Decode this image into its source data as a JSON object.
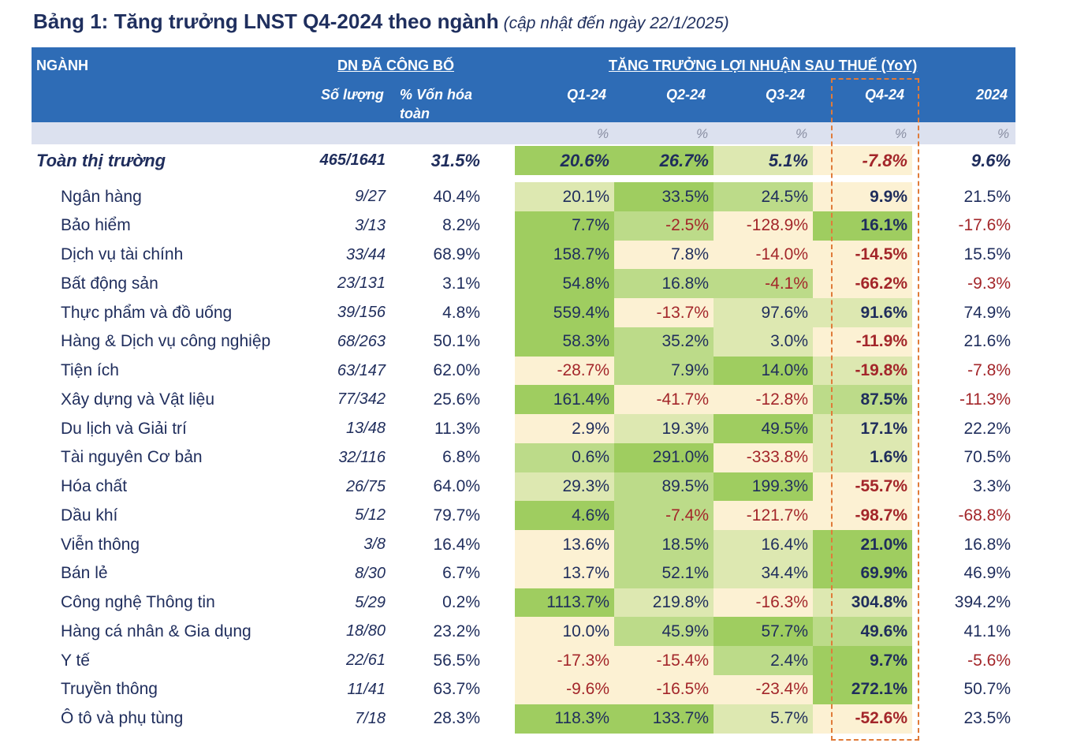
{
  "title": "Bảng 1: Tăng trưởng LNST Q4-2024 theo ngành",
  "subtitle": "(cập nhật đến ngày 22/1/2025)",
  "header": {
    "nganh": "NGÀNH",
    "dn_group": "DN ĐÃ CÔNG BỐ",
    "growth_group": "TĂNG TRƯỞNG LỢI NHUẬN SAU THUẾ (YoY)",
    "so_luong": "Số lượng",
    "von_hoa": "% Vốn hóa",
    "von_hoa2": "toàn",
    "q1": "Q1-24",
    "q2": "Q2-24",
    "q3": "Q3-24",
    "q4": "Q4-24",
    "y": "2024",
    "unit": "%"
  },
  "colors": {
    "heat_0": "#FCF1D3",
    "heat_1": "#DDE8B1",
    "heat_2": "#BCDB89",
    "heat_3": "#9FCD60",
    "positive": "#1F2D5C",
    "negative": "#A3262A",
    "highlight": "#E07B39",
    "header": "#2E6CB6"
  },
  "total": {
    "name": "Toàn thị trường",
    "count": "465/1641",
    "cap": "31.5%",
    "q": [
      "20.6%",
      "26.7%",
      "5.1%",
      "-7.8%"
    ],
    "heat": [
      3,
      3,
      1,
      0
    ],
    "y": "9.6%"
  },
  "rows": [
    {
      "name": "Ngân hàng",
      "count": "9/27",
      "cap": "40.4%",
      "q": [
        "20.1%",
        "33.5%",
        "24.5%",
        "9.9%"
      ],
      "heat": [
        1,
        3,
        2,
        0
      ],
      "y": "21.5%"
    },
    {
      "name": "Bảo hiểm",
      "count": "3/13",
      "cap": "8.2%",
      "q": [
        "7.7%",
        "-2.5%",
        "-128.9%",
        "16.1%"
      ],
      "heat": [
        3,
        2,
        0,
        3
      ],
      "y": "-17.6%"
    },
    {
      "name": "Dịch vụ tài chính",
      "count": "33/44",
      "cap": "68.9%",
      "q": [
        "158.7%",
        "7.8%",
        "-14.0%",
        "-14.5%"
      ],
      "heat": [
        3,
        0,
        0,
        0
      ],
      "y": "15.5%"
    },
    {
      "name": "Bất động sản",
      "count": "23/131",
      "cap": "3.1%",
      "q": [
        "54.8%",
        "16.8%",
        "-4.1%",
        "-66.2%"
      ],
      "heat": [
        3,
        2,
        2,
        0
      ],
      "y": "-9.3%"
    },
    {
      "name": "Thực phẩm và đồ uống",
      "count": "39/156",
      "cap": "4.8%",
      "q": [
        "559.4%",
        "-13.7%",
        "97.6%",
        "91.6%"
      ],
      "heat": [
        3,
        0,
        1,
        1
      ],
      "y": "74.9%"
    },
    {
      "name": "Hàng & Dịch vụ công nghiệp",
      "count": "68/263",
      "cap": "50.1%",
      "q": [
        "58.3%",
        "35.2%",
        "3.0%",
        "-11.9%"
      ],
      "heat": [
        3,
        2,
        1,
        0
      ],
      "y": "21.6%"
    },
    {
      "name": "Tiện ích",
      "count": "63/147",
      "cap": "62.0%",
      "q": [
        "-28.7%",
        "7.9%",
        "14.0%",
        "-19.8%"
      ],
      "heat": [
        0,
        2,
        3,
        1
      ],
      "y": "-7.8%"
    },
    {
      "name": "Xây dựng và Vật liệu",
      "count": "77/342",
      "cap": "25.6%",
      "q": [
        "161.4%",
        "-41.7%",
        "-12.8%",
        "87.5%"
      ],
      "heat": [
        3,
        0,
        0,
        2
      ],
      "y": "-11.3%"
    },
    {
      "name": "Du lịch và Giải trí",
      "count": "13/48",
      "cap": "11.3%",
      "q": [
        "2.9%",
        "19.3%",
        "49.5%",
        "17.1%"
      ],
      "heat": [
        0,
        1,
        3,
        1
      ],
      "y": "22.2%"
    },
    {
      "name": "Tài nguyên Cơ bản",
      "count": "32/116",
      "cap": "6.8%",
      "q": [
        "0.6%",
        "291.0%",
        "-333.8%",
        "1.6%"
      ],
      "heat": [
        2,
        3,
        0,
        1
      ],
      "y": "70.5%"
    },
    {
      "name": "Hóa chất",
      "count": "26/75",
      "cap": "64.0%",
      "q": [
        "29.3%",
        "89.5%",
        "199.3%",
        "-55.7%"
      ],
      "heat": [
        1,
        2,
        3,
        0
      ],
      "y": "3.3%"
    },
    {
      "name": "Dầu khí",
      "count": "5/12",
      "cap": "79.7%",
      "q": [
        "4.6%",
        "-7.4%",
        "-121.7%",
        "-98.7%"
      ],
      "heat": [
        3,
        2,
        0,
        0
      ],
      "y": "-68.8%"
    },
    {
      "name": "Viễn thông",
      "count": "3/8",
      "cap": "16.4%",
      "q": [
        "13.6%",
        "18.5%",
        "16.4%",
        "21.0%"
      ],
      "heat": [
        0,
        2,
        1,
        3
      ],
      "y": "16.8%"
    },
    {
      "name": "Bán lẻ",
      "count": "8/30",
      "cap": "6.7%",
      "q": [
        "13.7%",
        "52.1%",
        "34.4%",
        "69.9%"
      ],
      "heat": [
        0,
        2,
        1,
        3
      ],
      "y": "46.9%"
    },
    {
      "name": "Công nghệ Thông tin",
      "count": "5/29",
      "cap": "0.2%",
      "q": [
        "1113.7%",
        "219.8%",
        "-16.3%",
        "304.8%"
      ],
      "heat": [
        3,
        1,
        0,
        1
      ],
      "y": "394.2%"
    },
    {
      "name": "Hàng cá nhân & Gia dụng",
      "count": "18/80",
      "cap": "23.2%",
      "q": [
        "10.0%",
        "45.9%",
        "57.7%",
        "49.6%"
      ],
      "heat": [
        0,
        2,
        3,
        2
      ],
      "y": "41.1%"
    },
    {
      "name": "Y tế",
      "count": "22/61",
      "cap": "56.5%",
      "q": [
        "-17.3%",
        "-15.4%",
        "2.4%",
        "9.7%"
      ],
      "heat": [
        0,
        0,
        2,
        3
      ],
      "y": "-5.6%"
    },
    {
      "name": "Truyền thông",
      "count": "11/41",
      "cap": "63.7%",
      "q": [
        "-9.6%",
        "-16.5%",
        "-23.4%",
        "272.1%"
      ],
      "heat": [
        0,
        0,
        0,
        3
      ],
      "y": "50.7%"
    },
    {
      "name": "Ô tô và phụ tùng",
      "count": "7/18",
      "cap": "28.3%",
      "q": [
        "118.3%",
        "133.7%",
        "5.7%",
        "-52.6%"
      ],
      "heat": [
        3,
        3,
        1,
        0
      ],
      "y": "23.5%"
    }
  ]
}
